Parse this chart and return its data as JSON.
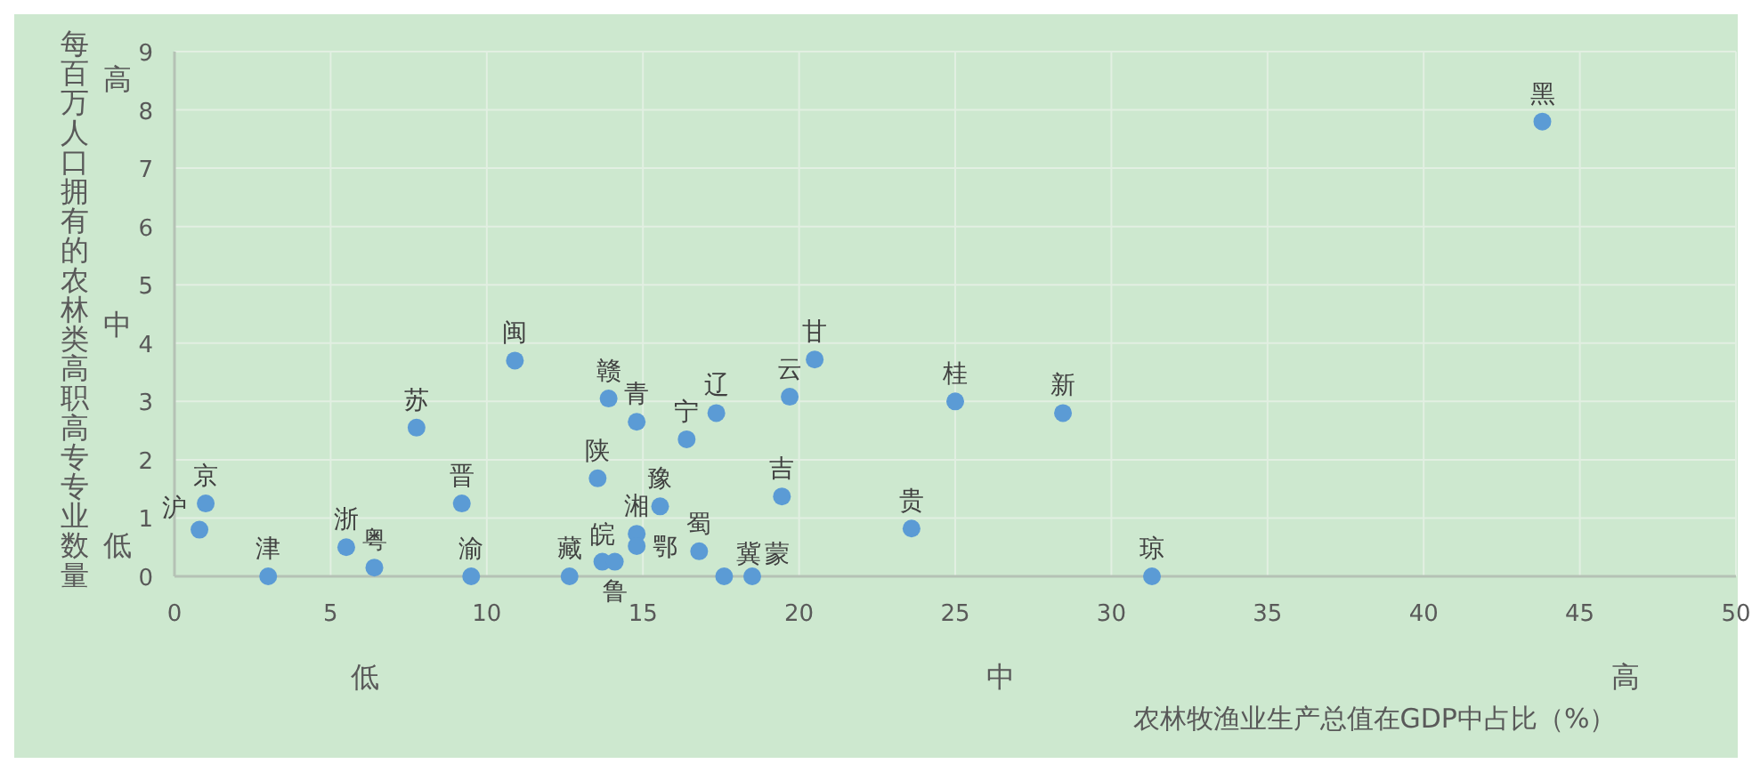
{
  "chart_data": {
    "type": "scatter",
    "xlabel": "农林牧渔业生产总值在GDP中占比（%）",
    "ylabel": "每百万人口拥有的农林类高职高专专业数量",
    "xlim": [
      0,
      50
    ],
    "ylim": [
      0,
      9
    ],
    "xticks": [
      0,
      5,
      10,
      15,
      20,
      25,
      30,
      35,
      40,
      45,
      50
    ],
    "yticks": [
      0,
      1,
      2,
      3,
      4,
      5,
      6,
      7,
      8,
      9
    ],
    "grid": true,
    "marker": "circle",
    "series": [
      {
        "color": "#5b9bd5",
        "x": [
          1.0,
          0.8,
          3.0,
          5.5,
          6.4,
          7.75,
          9.2,
          9.5,
          10.9,
          12.65,
          13.7,
          14.1,
          13.9,
          14.8,
          13.55,
          14.8,
          14.8,
          15.55,
          16.4,
          17.35,
          16.8,
          17.6,
          18.5,
          19.45,
          19.7,
          20.5,
          23.6,
          25.0,
          28.45,
          31.3,
          43.8
        ],
        "values": [
          1.25,
          0.8,
          0,
          0.5,
          0.15,
          2.55,
          1.25,
          0,
          3.7,
          0,
          0.25,
          0.25,
          3.05,
          2.65,
          1.68,
          0.73,
          0.52,
          1.2,
          2.35,
          2.8,
          0.43,
          0,
          0,
          1.37,
          3.08,
          3.72,
          0.82,
          3.0,
          2.8,
          0,
          7.8
        ]
      }
    ],
    "annotations": [
      "高",
      "中",
      "低",
      "低",
      "中",
      "高",
      {
        "text": "京",
        "x": 1.0,
        "y": 1.25
      },
      {
        "text": "沪",
        "x": 0.8,
        "y": 0.8
      },
      {
        "text": "津",
        "x": 3.0,
        "y": 0
      },
      {
        "text": "浙",
        "x": 5.5,
        "y": 0.5
      },
      {
        "text": "粤",
        "x": 6.4,
        "y": 0.15
      },
      {
        "text": "苏",
        "x": 7.75,
        "y": 2.55
      },
      {
        "text": "晋",
        "x": 9.2,
        "y": 1.25
      },
      {
        "text": "渝",
        "x": 9.5,
        "y": 0
      },
      {
        "text": "闽",
        "x": 10.9,
        "y": 3.7
      },
      {
        "text": "藏",
        "x": 12.65,
        "y": 0
      },
      {
        "text": "皖",
        "x": 13.7,
        "y": 0.25
      },
      {
        "text": "鲁",
        "x": 14.1,
        "y": 0.25
      },
      {
        "text": "赣",
        "x": 13.9,
        "y": 3.05
      },
      {
        "text": "青",
        "x": 14.8,
        "y": 2.65
      },
      {
        "text": "陕",
        "x": 13.55,
        "y": 1.68
      },
      {
        "text": "湘",
        "x": 14.8,
        "y": 0.73
      },
      {
        "text": "鄂",
        "x": 14.8,
        "y": 0.52
      },
      {
        "text": "豫",
        "x": 15.55,
        "y": 1.2
      },
      {
        "text": "宁",
        "x": 16.4,
        "y": 2.35
      },
      {
        "text": "辽",
        "x": 17.35,
        "y": 2.8
      },
      {
        "text": "蜀",
        "x": 16.8,
        "y": 0.43
      },
      {
        "text": "冀",
        "x": 17.6,
        "y": 0
      },
      {
        "text": "蒙",
        "x": 18.5,
        "y": 0
      },
      {
        "text": "吉",
        "x": 19.45,
        "y": 1.37
      },
      {
        "text": "云",
        "x": 19.7,
        "y": 3.08
      },
      {
        "text": "甘",
        "x": 20.5,
        "y": 3.72
      },
      {
        "text": "贵",
        "x": 23.6,
        "y": 0.82
      },
      {
        "text": "桂",
        "x": 25.0,
        "y": 3.0
      },
      {
        "text": "新",
        "x": 28.45,
        "y": 2.8
      },
      {
        "text": "琼",
        "x": 31.3,
        "y": 0
      },
      {
        "text": "黑",
        "x": 43.8,
        "y": 7.8
      }
    ]
  }
}
